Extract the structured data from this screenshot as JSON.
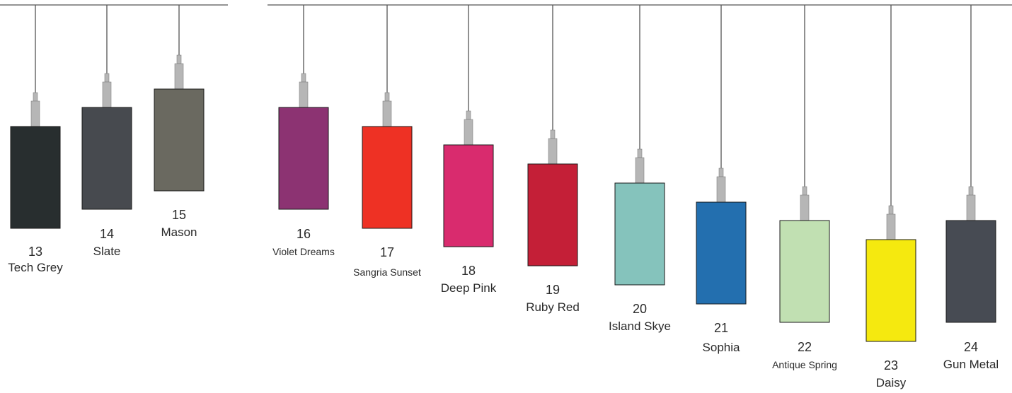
{
  "swatches": [
    {
      "number": "13",
      "name": "Tech Grey",
      "color": "#282e2f"
    },
    {
      "number": "14",
      "name": "Slate",
      "color": "#474a4f"
    },
    {
      "number": "15",
      "name": "Mason",
      "color": "#6a6960"
    },
    {
      "number": "16",
      "name": "Violet Dreams",
      "color": "#8c3372"
    },
    {
      "number": "17",
      "name": "Sangria Sunset",
      "color": "#ee3124"
    },
    {
      "number": "18",
      "name": "Deep Pink",
      "color": "#d92b6e"
    },
    {
      "number": "19",
      "name": "Ruby Red",
      "color": "#c41f37"
    },
    {
      "number": "20",
      "name": "Island Skye",
      "color": "#85c3bc"
    },
    {
      "number": "21",
      "name": "Sophia",
      "color": "#236faf"
    },
    {
      "number": "22",
      "name": "Antique Spring",
      "color": "#c1e0b2"
    },
    {
      "number": "23",
      "name": "Daisy",
      "color": "#f5e90f"
    },
    {
      "number": "24",
      "name": "Gun Metal",
      "color": "#474b53"
    }
  ],
  "colors": {
    "rail": "#555555",
    "cord": "#555555",
    "fitting": "#b6b6b6",
    "fitting_outline": "#808080",
    "shade_outline": "#1a1a1a"
  }
}
